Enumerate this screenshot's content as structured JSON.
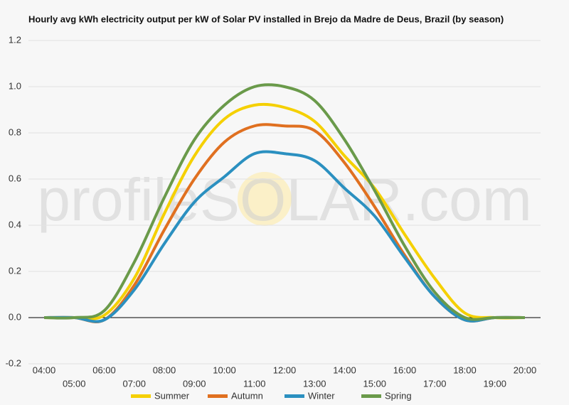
{
  "chart_data": {
    "type": "line",
    "title": "Hourly avg kWh electricity output per kW of Solar PV installed in Brejo da Madre de Deus, Brazil (by season)",
    "watermark": "profileSOLAR.com",
    "categories": [
      "04:00",
      "05:00",
      "06:00",
      "07:00",
      "08:00",
      "09:00",
      "10:00",
      "11:00",
      "12:00",
      "13:00",
      "14:00",
      "15:00",
      "16:00",
      "17:00",
      "18:00",
      "19:00",
      "20:00"
    ],
    "series": [
      {
        "name": "Summer",
        "color": "#f5d000",
        "values": [
          0,
          0,
          0.01,
          0.17,
          0.45,
          0.7,
          0.86,
          0.92,
          0.91,
          0.85,
          0.7,
          0.56,
          0.36,
          0.17,
          0.02,
          0,
          0
        ]
      },
      {
        "name": "Autumn",
        "color": "#e07020",
        "values": [
          0,
          0,
          -0.01,
          0.14,
          0.38,
          0.6,
          0.76,
          0.83,
          0.83,
          0.81,
          0.67,
          0.48,
          0.27,
          0.09,
          -0.01,
          0,
          0
        ]
      },
      {
        "name": "Winter",
        "color": "#2b90c0",
        "values": [
          0,
          0,
          -0.01,
          0.12,
          0.32,
          0.5,
          0.61,
          0.71,
          0.71,
          0.68,
          0.56,
          0.44,
          0.26,
          0.09,
          -0.01,
          0,
          0
        ]
      },
      {
        "name": "Spring",
        "color": "#6a9a4a",
        "values": [
          0,
          0,
          0.03,
          0.24,
          0.52,
          0.77,
          0.92,
          1.0,
          1.0,
          0.94,
          0.77,
          0.55,
          0.31,
          0.11,
          0,
          0,
          0
        ]
      }
    ],
    "ylim": [
      -0.2,
      1.2
    ],
    "yticks": [
      -0.2,
      {
        "value": 0,
        "label": "0.0"
      },
      0.2,
      0.4,
      0.6,
      0.8,
      {
        "value": 1,
        "label": "1.0"
      },
      1.2
    ],
    "grid": true
  }
}
